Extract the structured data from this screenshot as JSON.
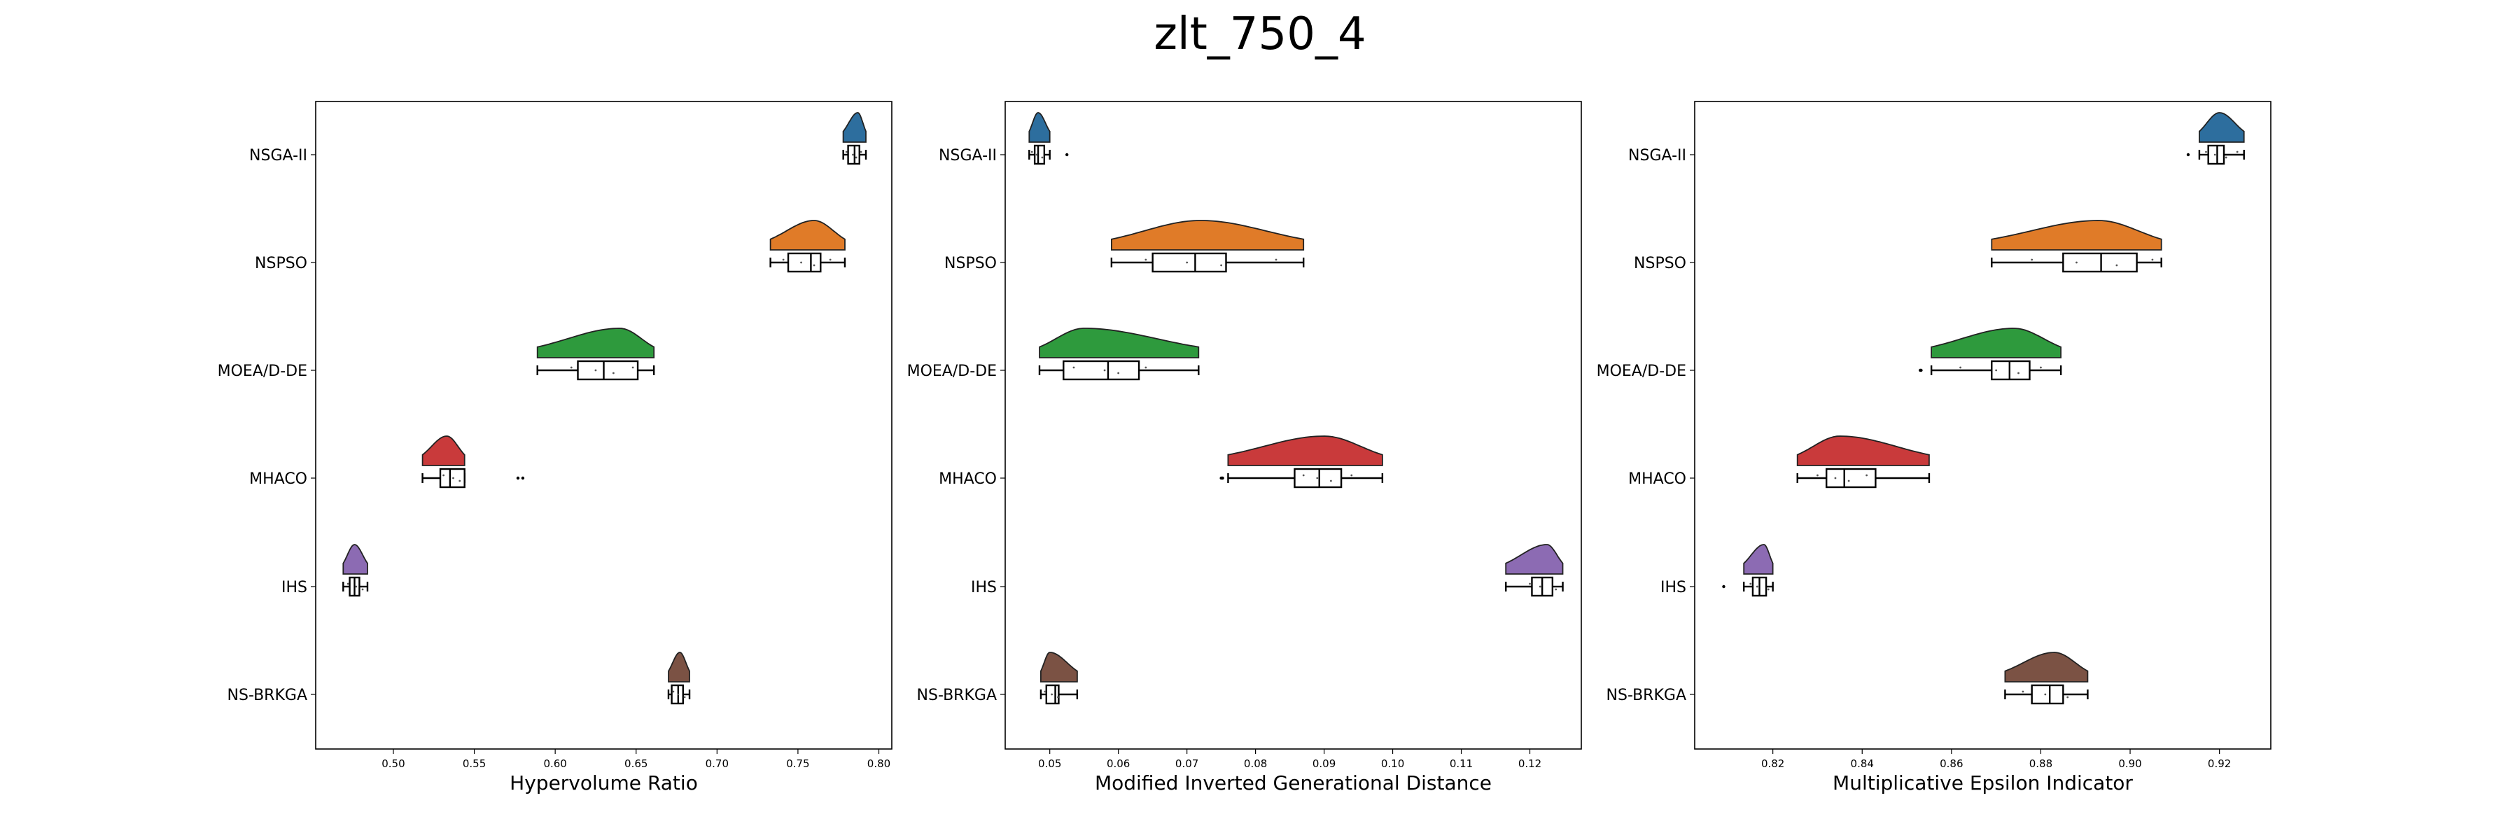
{
  "figure": {
    "title": "zlt_750_4"
  },
  "chart_data": [
    {
      "type": "raincloud",
      "xlabel": "Hypervolume Ratio",
      "ylabel": "",
      "xlim": [
        0.452,
        0.808
      ],
      "xticks": [
        0.5,
        0.55,
        0.6,
        0.65,
        0.7,
        0.75,
        0.8
      ],
      "xtick_labels": [
        "0.50",
        "0.55",
        "0.60",
        "0.65",
        "0.70",
        "0.75",
        "0.80"
      ],
      "categories": [
        "NSGA-II",
        "NSPSO",
        "MOEA/D-DE",
        "MHACO",
        "IHS",
        "NS-BRKGA"
      ],
      "series": [
        {
          "name": "NSGA-II",
          "color": "#2d6e9e",
          "min": 0.778,
          "q1": 0.781,
          "median": 0.785,
          "q3": 0.788,
          "max": 0.792,
          "fliers": [],
          "peak": 0.787,
          "jitter": [
            0.78,
            0.784,
            0.786,
            0.789
          ]
        },
        {
          "name": "NSPSO",
          "color": "#e07b28",
          "min": 0.733,
          "q1": 0.744,
          "median": 0.758,
          "q3": 0.764,
          "max": 0.779,
          "fliers": [],
          "peak": 0.76,
          "jitter": [
            0.741,
            0.752,
            0.76,
            0.77
          ]
        },
        {
          "name": "MOEA/D-DE",
          "color": "#2e9a3d",
          "min": 0.589,
          "q1": 0.614,
          "median": 0.63,
          "q3": 0.651,
          "max": 0.661,
          "fliers": [],
          "peak": 0.64,
          "jitter": [
            0.61,
            0.625,
            0.636,
            0.648
          ]
        },
        {
          "name": "MHACO",
          "color": "#c93a3b",
          "min": 0.518,
          "q1": 0.529,
          "median": 0.535,
          "q3": 0.544,
          "max": 0.544,
          "fliers": [
            0.577,
            0.58
          ],
          "peak": 0.533,
          "jitter": [
            0.531,
            0.537,
            0.541
          ]
        },
        {
          "name": "IHS",
          "color": "#8c6bb3",
          "min": 0.469,
          "q1": 0.473,
          "median": 0.476,
          "q3": 0.479,
          "max": 0.484,
          "fliers": [],
          "peak": 0.476,
          "jitter": [
            0.472,
            0.477,
            0.481
          ]
        },
        {
          "name": "NS-BRKGA",
          "color": "#7b5244",
          "min": 0.67,
          "q1": 0.672,
          "median": 0.676,
          "q3": 0.679,
          "max": 0.683,
          "fliers": [],
          "peak": 0.677,
          "jitter": [
            0.673,
            0.676,
            0.68
          ]
        }
      ]
    },
    {
      "type": "raincloud",
      "xlabel": "Modified Inverted Generational Distance",
      "ylabel": "",
      "xlim": [
        0.0435,
        0.1275
      ],
      "xticks": [
        0.05,
        0.06,
        0.07,
        0.08,
        0.09,
        0.1,
        0.11,
        0.12
      ],
      "xtick_labels": [
        "0.05",
        "0.06",
        "0.07",
        "0.08",
        "0.09",
        "0.10",
        "0.11",
        "0.12"
      ],
      "categories": [
        "NSGA-II",
        "NSPSO",
        "MOEA/D-DE",
        "MHACO",
        "IHS",
        "NS-BRKGA"
      ],
      "series": [
        {
          "name": "NSGA-II",
          "color": "#2d6e9e",
          "min": 0.047,
          "q1": 0.0478,
          "median": 0.0483,
          "q3": 0.0492,
          "max": 0.05,
          "fliers": [
            0.0525
          ],
          "peak": 0.0483,
          "jitter": [
            0.0474,
            0.0481,
            0.0489
          ]
        },
        {
          "name": "NSPSO",
          "color": "#e07b28",
          "min": 0.059,
          "q1": 0.065,
          "median": 0.0712,
          "q3": 0.0757,
          "max": 0.087,
          "fliers": [],
          "peak": 0.072,
          "jitter": [
            0.064,
            0.07,
            0.075,
            0.083
          ]
        },
        {
          "name": "MOEA/D-DE",
          "color": "#2e9a3d",
          "min": 0.0485,
          "q1": 0.052,
          "median": 0.0585,
          "q3": 0.063,
          "max": 0.0717,
          "fliers": [],
          "peak": 0.055,
          "jitter": [
            0.0535,
            0.058,
            0.06,
            0.064
          ]
        },
        {
          "name": "MHACO",
          "color": "#c93a3b",
          "min": 0.076,
          "q1": 0.0857,
          "median": 0.0893,
          "q3": 0.0925,
          "max": 0.0985,
          "fliers": [
            0.075,
            0.0752
          ],
          "peak": 0.09,
          "jitter": [
            0.087,
            0.089,
            0.091,
            0.094
          ]
        },
        {
          "name": "IHS",
          "color": "#8c6bb3",
          "min": 0.1165,
          "q1": 0.1203,
          "median": 0.1218,
          "q3": 0.1233,
          "max": 0.1248,
          "fliers": [],
          "peak": 0.1225,
          "jitter": [
            0.12,
            0.1215,
            0.1238
          ]
        },
        {
          "name": "NS-BRKGA",
          "color": "#7b5244",
          "min": 0.0487,
          "q1": 0.0495,
          "median": 0.0508,
          "q3": 0.0513,
          "max": 0.054,
          "fliers": [],
          "peak": 0.05,
          "jitter": [
            0.0493,
            0.0503,
            0.0512
          ]
        }
      ]
    },
    {
      "type": "raincloud",
      "xlabel": "Multiplicative Epsilon Indicator",
      "ylabel": "",
      "xlim": [
        0.8025,
        0.9315
      ],
      "xticks": [
        0.82,
        0.84,
        0.86,
        0.88,
        0.9,
        0.92
      ],
      "xtick_labels": [
        "0.82",
        "0.84",
        "0.86",
        "0.88",
        "0.90",
        "0.92"
      ],
      "categories": [
        "NSGA-II",
        "NSPSO",
        "MOEA/D-DE",
        "MHACO",
        "IHS",
        "NS-BRKGA"
      ],
      "series": [
        {
          "name": "NSGA-II",
          "color": "#2d6e9e",
          "min": 0.9155,
          "q1": 0.9175,
          "median": 0.9195,
          "q3": 0.921,
          "max": 0.9255,
          "fliers": [
            0.913
          ],
          "peak": 0.92,
          "jitter": [
            0.917,
            0.919,
            0.9215,
            0.924
          ]
        },
        {
          "name": "NSPSO",
          "color": "#e07b28",
          "min": 0.869,
          "q1": 0.885,
          "median": 0.8935,
          "q3": 0.9015,
          "max": 0.907,
          "fliers": [],
          "peak": 0.893,
          "jitter": [
            0.878,
            0.888,
            0.897,
            0.905
          ]
        },
        {
          "name": "MOEA/D-DE",
          "color": "#2e9a3d",
          "min": 0.8555,
          "q1": 0.869,
          "median": 0.873,
          "q3": 0.8775,
          "max": 0.8845,
          "fliers": [
            0.853,
            0.8532
          ],
          "peak": 0.874,
          "jitter": [
            0.862,
            0.87,
            0.875,
            0.88
          ]
        },
        {
          "name": "MHACO",
          "color": "#c93a3b",
          "min": 0.8255,
          "q1": 0.832,
          "median": 0.836,
          "q3": 0.843,
          "max": 0.855,
          "fliers": [],
          "peak": 0.835,
          "jitter": [
            0.83,
            0.834,
            0.837,
            0.841
          ]
        },
        {
          "name": "IHS",
          "color": "#8c6bb3",
          "min": 0.8135,
          "q1": 0.8155,
          "median": 0.817,
          "q3": 0.8185,
          "max": 0.82,
          "fliers": [
            0.809
          ],
          "peak": 0.818,
          "jitter": [
            0.815,
            0.8165,
            0.819
          ]
        },
        {
          "name": "NS-BRKGA",
          "color": "#7b5244",
          "min": 0.872,
          "q1": 0.878,
          "median": 0.882,
          "q3": 0.885,
          "max": 0.8905,
          "fliers": [],
          "peak": 0.883,
          "jitter": [
            0.876,
            0.881,
            0.886
          ]
        }
      ]
    }
  ]
}
